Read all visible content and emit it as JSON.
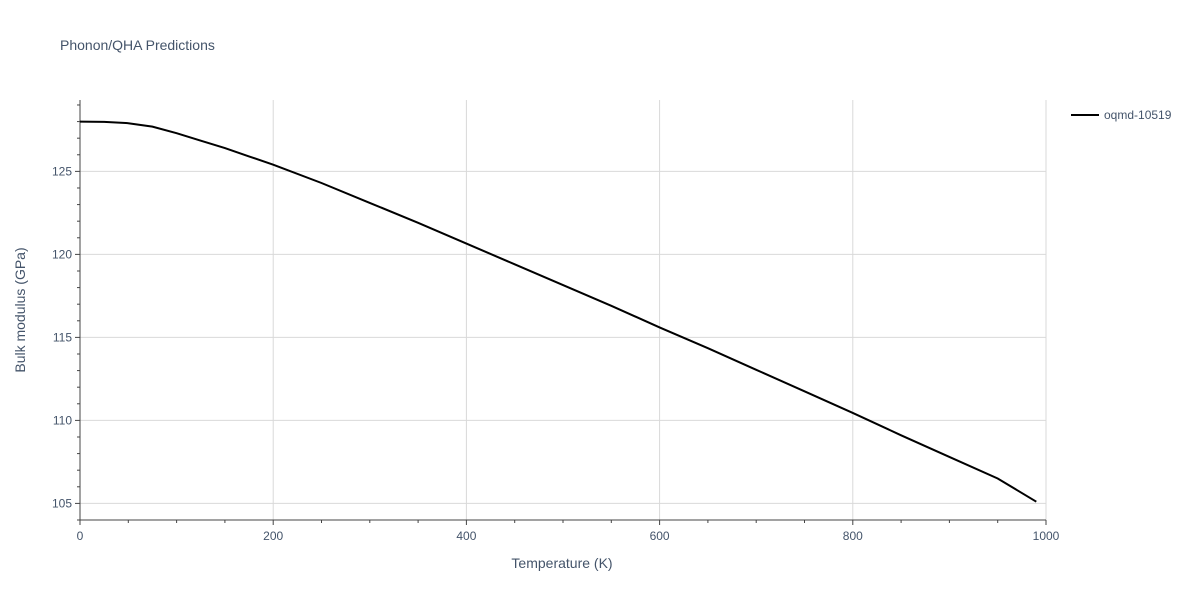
{
  "chart_data": {
    "type": "line",
    "title": "Phonon/QHA Predictions",
    "xlabel": "Temperature (K)",
    "ylabel": "Bulk modulus (GPa)",
    "xlim": [
      0,
      1000
    ],
    "ylim": [
      104,
      129.3
    ],
    "x_ticks": [
      0,
      200,
      400,
      600,
      800,
      1000
    ],
    "y_ticks": [
      105,
      110,
      115,
      120,
      125
    ],
    "grid": true,
    "legend_position": "top-right",
    "series": [
      {
        "name": "oqmd-10519",
        "color": "#000000",
        "x": [
          0,
          25,
          50,
          75,
          100,
          125,
          150,
          175,
          200,
          250,
          300,
          350,
          400,
          450,
          500,
          550,
          600,
          650,
          700,
          750,
          800,
          850,
          900,
          950,
          990
        ],
        "y": [
          128.0,
          127.98,
          127.9,
          127.7,
          127.3,
          126.85,
          126.4,
          125.9,
          125.4,
          124.3,
          123.1,
          121.9,
          120.65,
          119.4,
          118.15,
          116.9,
          115.6,
          114.35,
          113.05,
          111.75,
          110.45,
          109.1,
          107.8,
          106.5,
          105.1
        ]
      }
    ]
  }
}
